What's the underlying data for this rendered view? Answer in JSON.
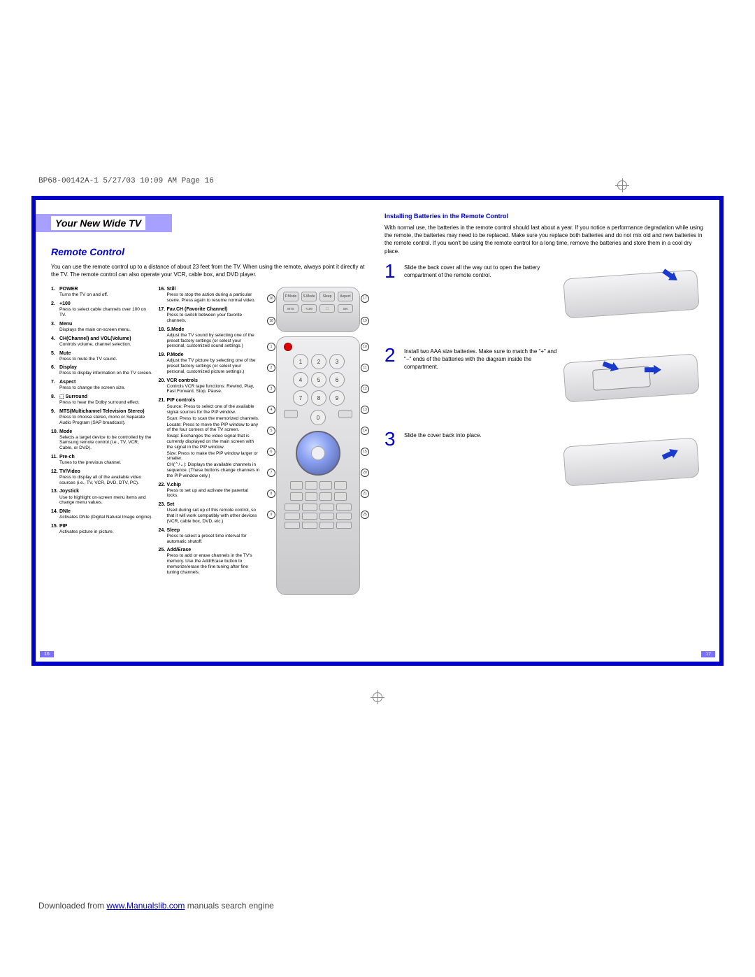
{
  "header_line": "BP68-00142A-1  5/27/03  10:09 AM  Page 16",
  "tab_title": "Your New Wide TV",
  "left": {
    "section_title": "Remote Control",
    "intro": "You can use the remote control up to a distance of about 23 feet from the TV. When using the remote, always point it directly at the TV. The remote control can also operate your VCR, cable box, and DVD player.",
    "features_col1": [
      {
        "n": "1.",
        "t": "POWER",
        "d": "Turns the TV on and off."
      },
      {
        "n": "2.",
        "t": "+100",
        "d": "Press to select cable channels over 100 on TV."
      },
      {
        "n": "3.",
        "t": "Menu",
        "d": "Displays the main on-screen menu."
      },
      {
        "n": "4.",
        "t": "CH(Channel) and VOL(Volume)",
        "d": "Controls volume, channel selection."
      },
      {
        "n": "5.",
        "t": "Mute",
        "d": "Press to mute the TV sound."
      },
      {
        "n": "6.",
        "t": "Display",
        "d": "Press to display information on the TV screen."
      },
      {
        "n": "7.",
        "t": "Aspect",
        "d": "Press to change the screen size."
      },
      {
        "n": "8.",
        "t": "⬚ Surround",
        "d": "Press to hear the Dolby surround effect."
      },
      {
        "n": "9.",
        "t": "MTS(Multichannel Television Stereo)",
        "d": "Press to choose stereo, mono or Separate Audio Program (SAP broadcast)."
      },
      {
        "n": "10.",
        "t": "Mode",
        "d": "Selects a target device to be controlled by the Samsung remote control (i.e., TV, VCR, Cable, or DVD)."
      },
      {
        "n": "11.",
        "t": "Pre-ch",
        "d": "Tunes to the previous channel."
      },
      {
        "n": "12.",
        "t": "TV/Video",
        "d": "Press to display all of the available video sources (i.e., TV, VCR, DVD, DTV, PC)."
      },
      {
        "n": "13.",
        "t": "Joystick",
        "d": "Use to highlight on-screen menu items and change menu values."
      },
      {
        "n": "14.",
        "t": "DNIe",
        "d": "Activates DNIe (Digital Natural Image engine)."
      },
      {
        "n": "15.",
        "t": "PIP",
        "d": "Activates picture in picture."
      }
    ],
    "features_col2": [
      {
        "n": "16.",
        "t": "Still",
        "d": "Press to stop the action during a particular scene. Press again to resume normal video."
      },
      {
        "n": "17.",
        "t": "Fav.CH (Favorite Channel)",
        "d": "Press to switch between your favorite channels."
      },
      {
        "n": "18.",
        "t": "S.Mode",
        "d": "Adjust the TV sound by selecting one of the preset factory settings (or select your personal, customized sound settings.)"
      },
      {
        "n": "19.",
        "t": "P.Mode",
        "d": "Adjust the TV picture by selecting one of the preset factory settings (or select your personal, customized picture settings.)"
      },
      {
        "n": "20.",
        "t": "VCR controls",
        "d": "Controls VCR tape functions: Rewind, Play, Fast Forward, Stop, Pause."
      },
      {
        "n": "21.",
        "t": "PIP controls",
        "subs": [
          "Source: Press to select one of the available signal sources for the PIP window.",
          "Scan: Press to scan the memorized channels.",
          "Locate: Press to move the PIP window to any of the four corners of the TV screen.",
          "Swap: Exchanges the video signal that is currently displayed on the main screen with the signal in the PIP window.",
          "Size: Press to make the PIP window larger or smaller.",
          "CH(⌃/⌄): Displays the available channels in sequence. (These buttons change channels in the PIP window only.)"
        ]
      },
      {
        "n": "22.",
        "t": "V.chip",
        "d": "Press to set up and activate the parental locks."
      },
      {
        "n": "23.",
        "t": "Set",
        "d": "Used during set up of this remote control, so that it will work compatibly with other devices (VCR, cable box, DVD, etc.)"
      },
      {
        "n": "24.",
        "t": "Sleep",
        "d": "Press to select a preset time interval for automatic shutoff."
      },
      {
        "n": "25.",
        "t": "Add/Erase",
        "d": "Press to add or erase channels in the TV's memory. Use the Add/Erase button to memorize/erase the fine tuning after fine tuning channels."
      }
    ],
    "remote_top_buttons": [
      "P.Mode",
      "S.Mode",
      "Sleep",
      "Aspect"
    ],
    "remote_top_buttons2": [
      "MTS",
      "+100",
      "⬚",
      "Set"
    ],
    "numpad": [
      "1",
      "2",
      "3",
      "4",
      "5",
      "6",
      "7",
      "8",
      "9",
      "0"
    ],
    "page_num": "16"
  },
  "right": {
    "subheading": "Installing Batteries in the Remote Control",
    "intro": "With normal use, the batteries in the remote control should last about a year. If you notice a performance degradation while using the remote, the batteries may need to be replaced. Make sure you replace both batteries and do not mix old and new batteries in the remote control. If you won't be using the remote control for a long time, remove the batteries and store them in a cool dry place.",
    "steps": [
      {
        "n": "1",
        "t": "Slide the back cover all the way out to open the battery compartment of the remote control."
      },
      {
        "n": "2",
        "t": "Install two AAA size batteries. Make sure to match the \"+\" and \"−\" ends of the batteries with the diagram inside the compartment."
      },
      {
        "n": "3",
        "t": "Slide the cover back into place."
      }
    ],
    "page_num": "17"
  },
  "download_pre": "Downloaded from ",
  "download_link": "www.Manualslib.com",
  "download_post": " manuals search engine",
  "colors": {
    "accent": "#0000c8",
    "tab_bg": "#a8a0ff",
    "arrow": "#1a3acc"
  }
}
